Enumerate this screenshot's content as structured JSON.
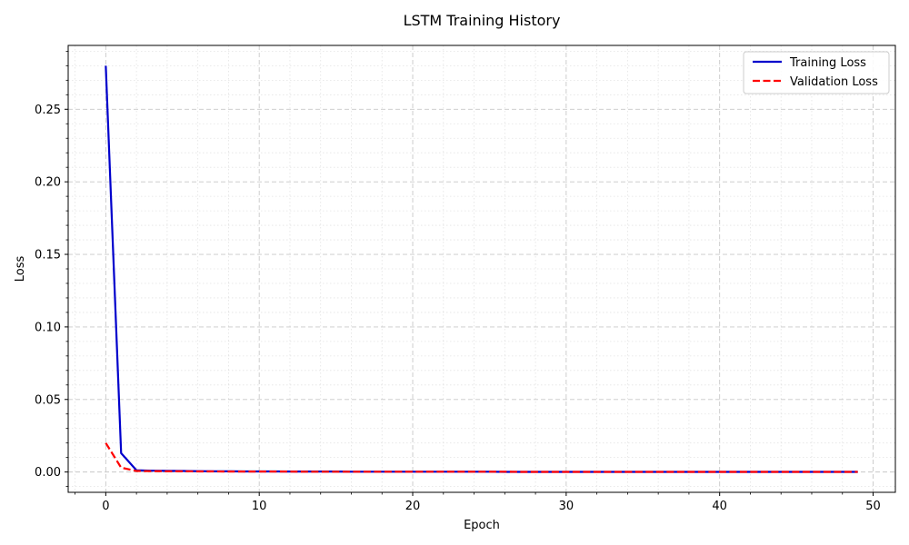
{
  "chart_data": {
    "type": "line",
    "title": "LSTM Training History",
    "xlabel": "Epoch",
    "ylabel": "Loss",
    "xlim": [
      -2.45,
      51.45
    ],
    "ylim": [
      -0.014,
      0.294
    ],
    "x_ticks": [
      0,
      10,
      20,
      30,
      40,
      50
    ],
    "x_tick_labels": [
      "0",
      "10",
      "20",
      "30",
      "40",
      "50"
    ],
    "y_ticks": [
      0.0,
      0.05,
      0.1,
      0.15,
      0.2,
      0.25
    ],
    "y_tick_labels": [
      "0.00",
      "0.05",
      "0.10",
      "0.15",
      "0.20",
      "0.25"
    ],
    "grid": true,
    "minor_grid": true,
    "legend_position": "top-right",
    "series": [
      {
        "name": "Training Loss",
        "color": "#0000cc",
        "style": "solid",
        "x": [
          0,
          1,
          2,
          3,
          4,
          5,
          6,
          7,
          8,
          9,
          10,
          11,
          12,
          13,
          14,
          15,
          16,
          17,
          18,
          19,
          20,
          21,
          22,
          23,
          24,
          25,
          26,
          27,
          28,
          29,
          30,
          31,
          32,
          33,
          34,
          35,
          36,
          37,
          38,
          39,
          40,
          41,
          42,
          43,
          44,
          45,
          46,
          47,
          48,
          49
        ],
        "y": [
          0.28,
          0.013,
          0.0012,
          0.0009,
          0.0008,
          0.0007,
          0.0006,
          0.0005,
          0.0005,
          0.0004,
          0.0004,
          0.0004,
          0.0003,
          0.0003,
          0.0003,
          0.0003,
          0.0002,
          0.0002,
          0.0002,
          0.0002,
          0.0002,
          0.0002,
          0.0002,
          0.0002,
          0.0002,
          0.0002,
          0.0001,
          0.0001,
          0.0001,
          0.0001,
          0.0001,
          0.0001,
          0.0001,
          0.0001,
          0.0001,
          0.0001,
          0.0001,
          0.0001,
          0.0001,
          0.0001,
          0.0001,
          0.0001,
          0.0001,
          0.0001,
          0.0001,
          0.0001,
          0.0001,
          0.0001,
          0.0001,
          0.0001
        ]
      },
      {
        "name": "Validation Loss",
        "color": "#ff0000",
        "style": "dashed",
        "x": [
          0,
          1,
          2,
          3,
          4,
          5,
          6,
          7,
          8,
          9,
          10,
          11,
          12,
          13,
          14,
          15,
          16,
          17,
          18,
          19,
          20,
          21,
          22,
          23,
          24,
          25,
          26,
          27,
          28,
          29,
          30,
          31,
          32,
          33,
          34,
          35,
          36,
          37,
          38,
          39,
          40,
          41,
          42,
          43,
          44,
          45,
          46,
          47,
          48,
          49
        ],
        "y": [
          0.02,
          0.003,
          0.0007,
          0.0006,
          0.0005,
          0.0005,
          0.0004,
          0.0004,
          0.0003,
          0.0003,
          0.0003,
          0.0003,
          0.0003,
          0.0002,
          0.0002,
          0.0002,
          0.0002,
          0.0002,
          0.0002,
          0.0002,
          0.0002,
          0.0002,
          0.0002,
          0.0002,
          0.0002,
          0.0002,
          0.0002,
          0.0001,
          0.0001,
          0.0001,
          0.0001,
          0.0001,
          0.0001,
          0.0001,
          0.0001,
          0.0001,
          0.0001,
          0.0001,
          0.0001,
          0.0001,
          0.0001,
          0.0001,
          0.0001,
          0.0001,
          0.0001,
          0.0001,
          0.0001,
          0.0001,
          0.0001,
          0.0001
        ]
      }
    ]
  }
}
